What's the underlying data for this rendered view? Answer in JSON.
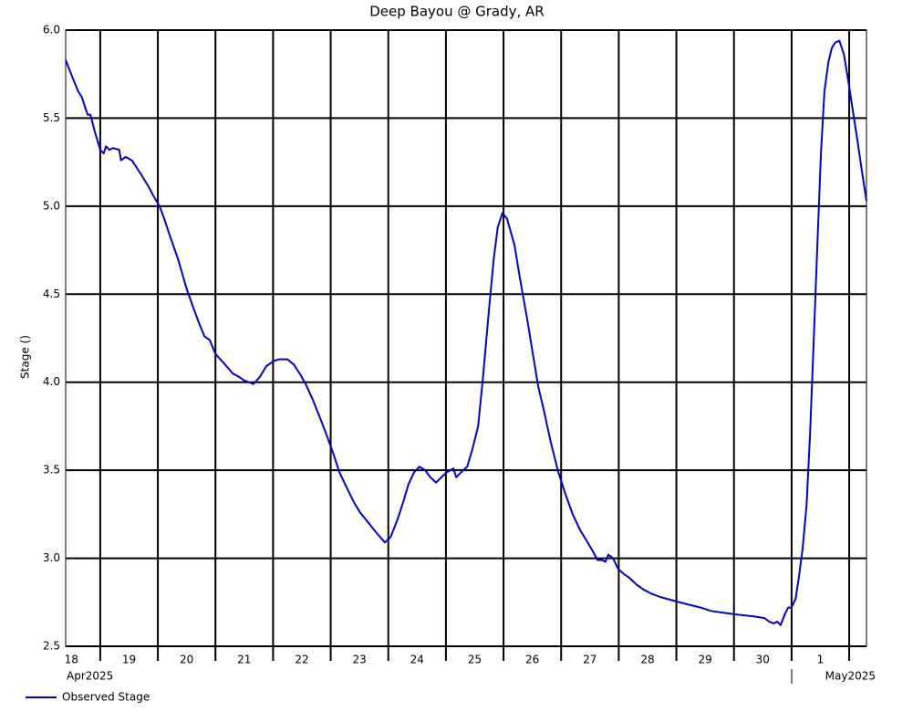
{
  "chart_data": {
    "type": "line",
    "title": "Deep Bayou @ Grady, AR",
    "ylabel": "Stage ()",
    "month_labels": [
      "Apr2025",
      "May2025"
    ],
    "xlim": [
      0.4,
      14.3
    ],
    "ylim": [
      2.5,
      6.0
    ],
    "xticks": [
      {
        "value": 0.5,
        "label": "18"
      },
      {
        "value": 1.5,
        "label": "19"
      },
      {
        "value": 2.5,
        "label": "20"
      },
      {
        "value": 3.5,
        "label": "21"
      },
      {
        "value": 4.5,
        "label": "22"
      },
      {
        "value": 5.5,
        "label": "23"
      },
      {
        "value": 6.5,
        "label": "24"
      },
      {
        "value": 7.5,
        "label": "25"
      },
      {
        "value": 8.5,
        "label": "26"
      },
      {
        "value": 9.5,
        "label": "27"
      },
      {
        "value": 10.5,
        "label": "28"
      },
      {
        "value": 11.5,
        "label": "29"
      },
      {
        "value": 12.5,
        "label": "30"
      },
      {
        "value": 13.5,
        "label": "1"
      }
    ],
    "xgrid": [
      1,
      2,
      3,
      4,
      5,
      6,
      7,
      8,
      9,
      10,
      11,
      12,
      13,
      14
    ],
    "yticks": [
      2.5,
      {
        "value": 3,
        "label": "3.0"
      },
      3.5,
      {
        "value": 4,
        "label": "4.0"
      },
      4.5,
      {
        "value": 5,
        "label": "5.0"
      },
      5.5,
      {
        "value": 6,
        "label": "6.0"
      }
    ],
    "grid": true,
    "x": [
      0.4,
      0.52,
      0.62,
      0.68,
      0.78,
      0.83,
      0.9,
      1.0,
      1.06,
      1.1,
      1.16,
      1.22,
      1.33,
      1.36,
      1.44,
      1.55,
      1.71,
      1.84,
      1.92,
      2.03,
      2.11,
      2.2,
      2.35,
      2.5,
      2.62,
      2.71,
      2.81,
      2.9,
      3.0,
      3.14,
      3.3,
      3.41,
      3.5,
      3.66,
      3.77,
      3.88,
      4.01,
      4.1,
      4.25,
      4.36,
      4.48,
      4.58,
      4.69,
      4.8,
      4.93,
      5.05,
      5.15,
      5.28,
      5.4,
      5.51,
      5.66,
      5.78,
      5.94,
      6.04,
      6.16,
      6.26,
      6.35,
      6.45,
      6.54,
      6.64,
      6.73,
      6.83,
      6.92,
      7.02,
      7.13,
      7.18,
      7.27,
      7.37,
      7.46,
      7.56,
      7.65,
      7.75,
      7.83,
      7.9,
      7.98,
      8.06,
      8.19,
      8.28,
      8.41,
      8.51,
      8.6,
      8.7,
      8.82,
      8.95,
      9.08,
      9.2,
      9.33,
      9.46,
      9.55,
      9.63,
      9.71,
      9.77,
      9.82,
      9.9,
      9.99,
      10.09,
      10.18,
      10.31,
      10.44,
      10.56,
      10.72,
      10.94,
      11.17,
      11.42,
      11.61,
      11.83,
      12.05,
      12.34,
      12.53,
      12.61,
      12.69,
      12.75,
      12.81,
      12.88,
      12.94,
      13.0,
      13.07,
      13.13,
      13.19,
      13.26,
      13.32,
      13.38,
      13.45,
      13.51,
      13.57,
      13.64,
      13.7,
      13.76,
      13.83,
      13.91,
      13.99,
      14.06,
      14.14,
      14.22,
      14.3
    ],
    "series": [
      {
        "name": "Observed Stage",
        "color": "#0000dd",
        "values": [
          5.83,
          5.73,
          5.65,
          5.62,
          5.52,
          5.52,
          5.43,
          5.32,
          5.3,
          5.34,
          5.32,
          5.33,
          5.32,
          5.26,
          5.28,
          5.26,
          5.18,
          5.11,
          5.06,
          5.0,
          4.93,
          4.84,
          4.7,
          4.53,
          4.42,
          4.34,
          4.26,
          4.24,
          4.16,
          4.11,
          4.05,
          4.03,
          4.01,
          3.99,
          4.03,
          4.09,
          4.12,
          4.13,
          4.13,
          4.1,
          4.04,
          3.98,
          3.9,
          3.81,
          3.7,
          3.59,
          3.49,
          3.4,
          3.32,
          3.26,
          3.2,
          3.15,
          3.09,
          3.12,
          3.22,
          3.32,
          3.42,
          3.49,
          3.52,
          3.5,
          3.46,
          3.43,
          3.46,
          3.49,
          3.51,
          3.46,
          3.49,
          3.52,
          3.62,
          3.75,
          4.05,
          4.42,
          4.7,
          4.88,
          4.96,
          4.93,
          4.78,
          4.6,
          4.36,
          4.16,
          3.98,
          3.84,
          3.66,
          3.49,
          3.36,
          3.25,
          3.16,
          3.09,
          3.04,
          2.99,
          2.99,
          2.98,
          3.02,
          3.0,
          2.94,
          2.91,
          2.89,
          2.85,
          2.82,
          2.8,
          2.78,
          2.76,
          2.74,
          2.72,
          2.7,
          2.69,
          2.68,
          2.67,
          2.66,
          2.64,
          2.63,
          2.64,
          2.62,
          2.68,
          2.72,
          2.72,
          2.77,
          2.9,
          3.05,
          3.3,
          3.7,
          4.2,
          4.8,
          5.3,
          5.65,
          5.82,
          5.9,
          5.93,
          5.94,
          5.86,
          5.7,
          5.55,
          5.38,
          5.2,
          5.03
        ]
      }
    ]
  }
}
